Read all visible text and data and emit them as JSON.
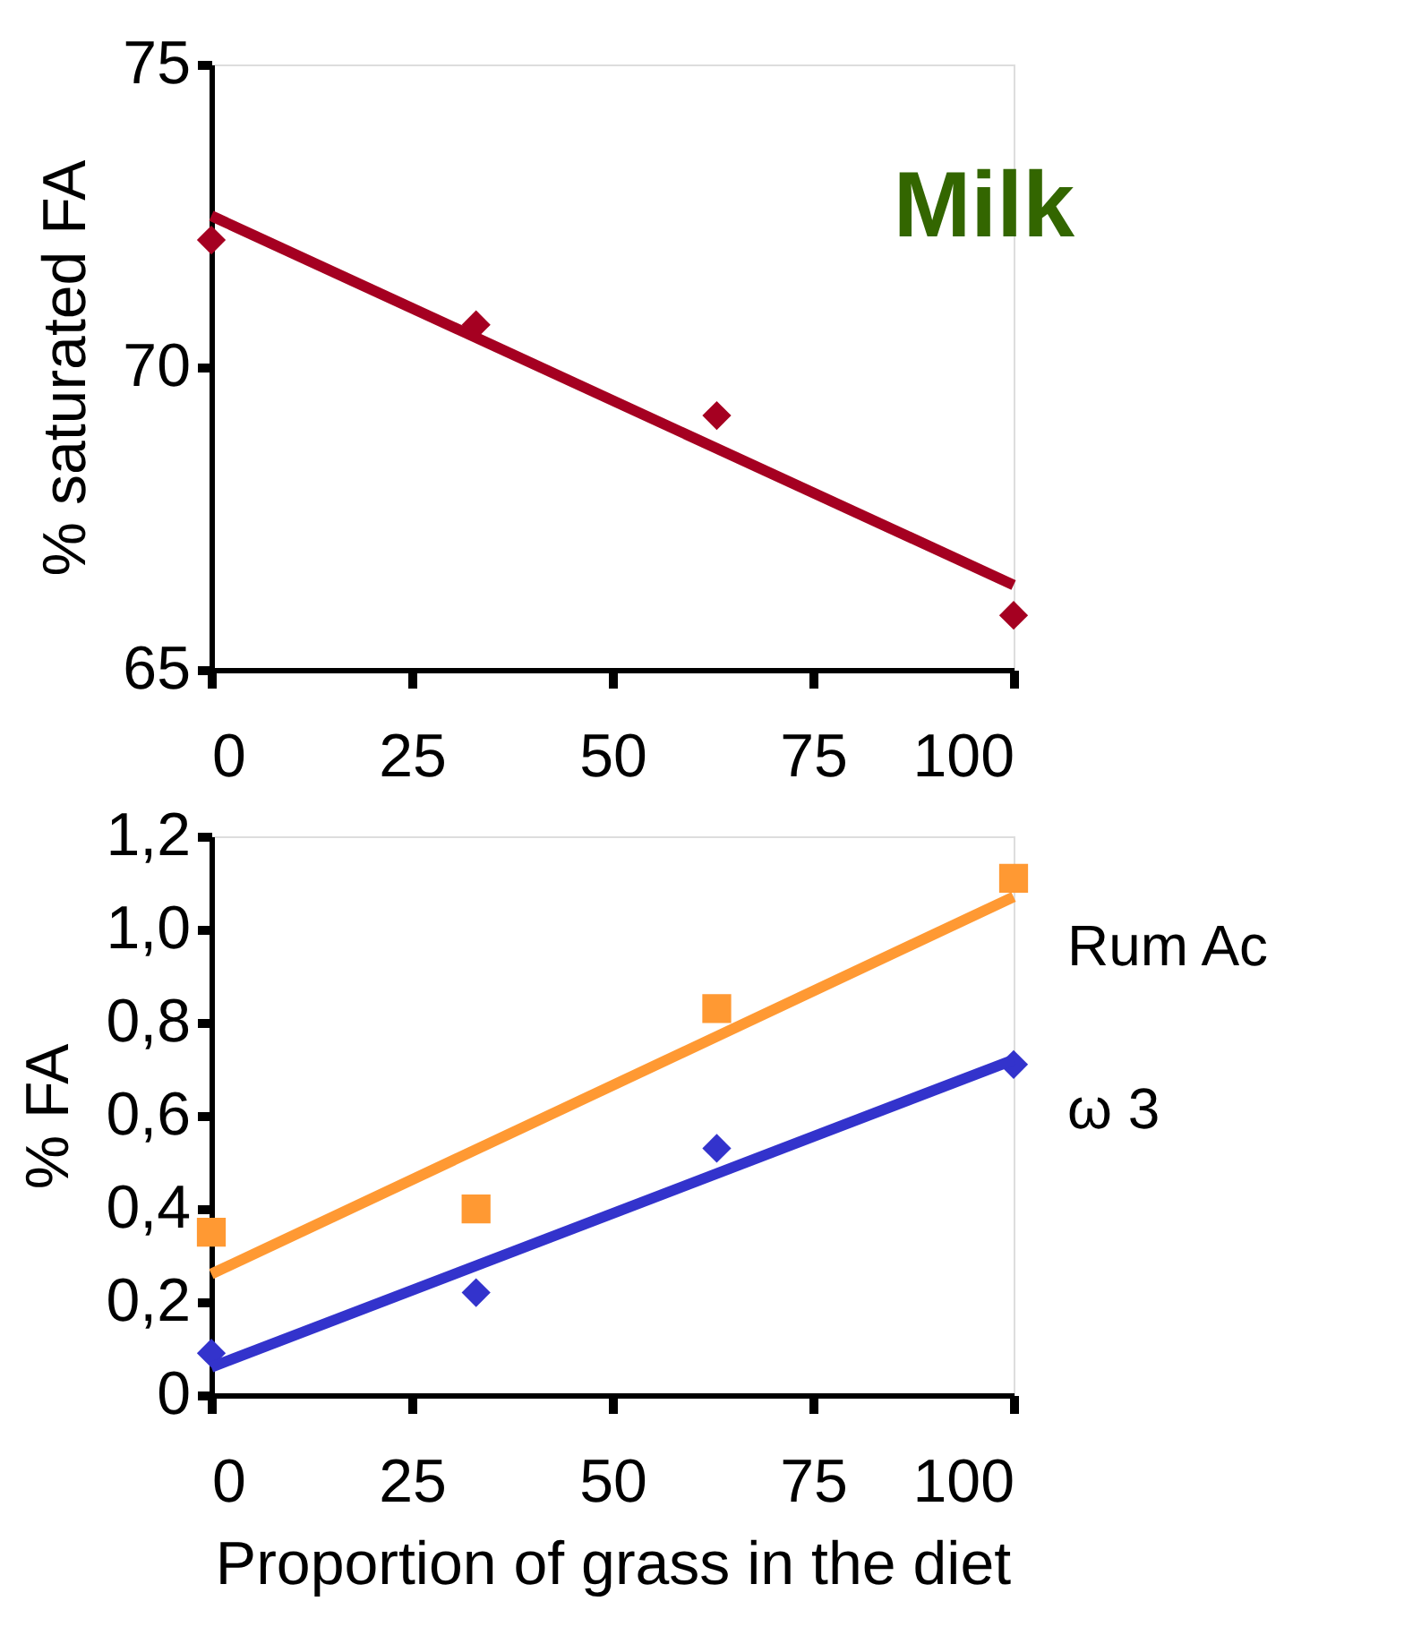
{
  "chart_data": [
    {
      "type": "scatter",
      "annotations": [
        "Milk"
      ],
      "ylabel": "% saturated FA",
      "xlim": [
        0,
        100
      ],
      "xticks": [
        0,
        25,
        50,
        75,
        100
      ],
      "ylim": [
        65,
        75
      ],
      "yticks": [
        65,
        70,
        75
      ],
      "grid": false,
      "series": [
        {
          "color": "#a50021",
          "marker": "diamond",
          "x": [
            0,
            33,
            63,
            100
          ],
          "values": [
            72.1,
            70.7,
            69.2,
            65.9
          ]
        },
        {
          "type": "line",
          "color": "#a50021",
          "marker": "none",
          "line_style": "solid",
          "x": [
            0,
            100
          ],
          "values": [
            72.5,
            66.4
          ]
        }
      ]
    },
    {
      "type": "scatter",
      "ylabel": "% FA",
      "xlabel": "Proportion of grass in the diet",
      "xlim": [
        0,
        100
      ],
      "xticks": [
        0,
        25,
        50,
        75,
        100
      ],
      "ylim": [
        0,
        1.2
      ],
      "yticks": [
        0,
        {
          "value": 0.2,
          "label": "0,2"
        },
        {
          "value": 0.4,
          "label": "0,4"
        },
        {
          "value": 0.6,
          "label": "0,6"
        },
        {
          "value": 0.8,
          "label": "0,8"
        },
        {
          "value": 1.0,
          "label": "1,0"
        },
        {
          "value": 1.2,
          "label": "1,2"
        }
      ],
      "grid": false,
      "series": [
        {
          "color": "#ff9933",
          "marker": "square",
          "x": [
            0,
            33,
            63,
            100
          ],
          "values": [
            0.35,
            0.4,
            0.83,
            1.11
          ]
        },
        {
          "type": "line",
          "name": "Rum Ac",
          "color": "#ff9933",
          "marker": "none",
          "line_style": "solid",
          "x": [
            0,
            100
          ],
          "values": [
            0.26,
            1.07
          ]
        },
        {
          "color": "#3333cc",
          "marker": "diamond",
          "x": [
            0,
            33,
            63,
            100
          ],
          "values": [
            0.09,
            0.22,
            0.53,
            0.71
          ]
        },
        {
          "type": "line",
          "name": "ω 3",
          "color": "#3333cc",
          "marker": "none",
          "line_style": "solid",
          "x": [
            0,
            100
          ],
          "values": [
            0.06,
            0.72
          ]
        }
      ]
    }
  ]
}
